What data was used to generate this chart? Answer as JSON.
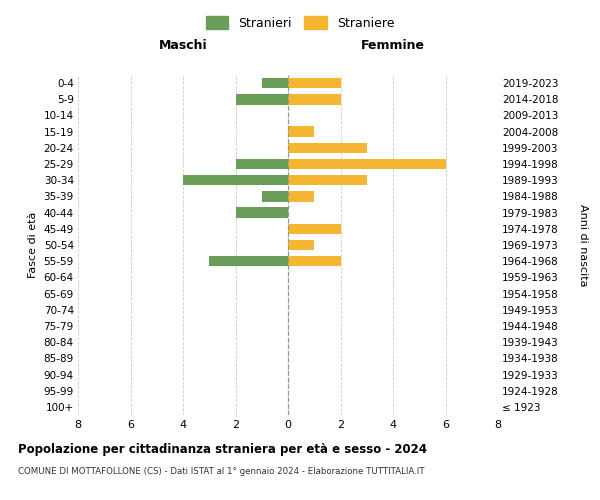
{
  "age_groups": [
    "100+",
    "95-99",
    "90-94",
    "85-89",
    "80-84",
    "75-79",
    "70-74",
    "65-69",
    "60-64",
    "55-59",
    "50-54",
    "45-49",
    "40-44",
    "35-39",
    "30-34",
    "25-29",
    "20-24",
    "15-19",
    "10-14",
    "5-9",
    "0-4"
  ],
  "anni_nascita": [
    "≤ 1923",
    "1924-1928",
    "1929-1933",
    "1934-1938",
    "1939-1943",
    "1944-1948",
    "1949-1953",
    "1954-1958",
    "1959-1963",
    "1964-1968",
    "1969-1973",
    "1974-1978",
    "1979-1983",
    "1984-1988",
    "1989-1993",
    "1994-1998",
    "1999-2003",
    "2004-2008",
    "2009-2013",
    "2014-2018",
    "2019-2023"
  ],
  "maschi": [
    0,
    0,
    0,
    0,
    0,
    0,
    0,
    0,
    0,
    3,
    0,
    0,
    2,
    1,
    4,
    2,
    0,
    0,
    0,
    2,
    1
  ],
  "femmine": [
    0,
    0,
    0,
    0,
    0,
    0,
    0,
    0,
    0,
    2,
    1,
    2,
    0,
    1,
    3,
    6,
    3,
    1,
    0,
    2,
    2
  ],
  "color_maschi": "#6a9e58",
  "color_femmine": "#f5b731",
  "title": "Popolazione per cittadinanza straniera per età e sesso - 2024",
  "subtitle": "COMUNE DI MOTTAFOLLONE (CS) - Dati ISTAT al 1° gennaio 2024 - Elaborazione TUTTITALIA.IT",
  "xlabel_left": "Maschi",
  "xlabel_right": "Femmine",
  "ylabel_left": "Fasce di età",
  "ylabel_right": "Anni di nascita",
  "legend_maschi": "Stranieri",
  "legend_femmine": "Straniere",
  "xlim": 8,
  "background_color": "#ffffff",
  "grid_color": "#cccccc"
}
